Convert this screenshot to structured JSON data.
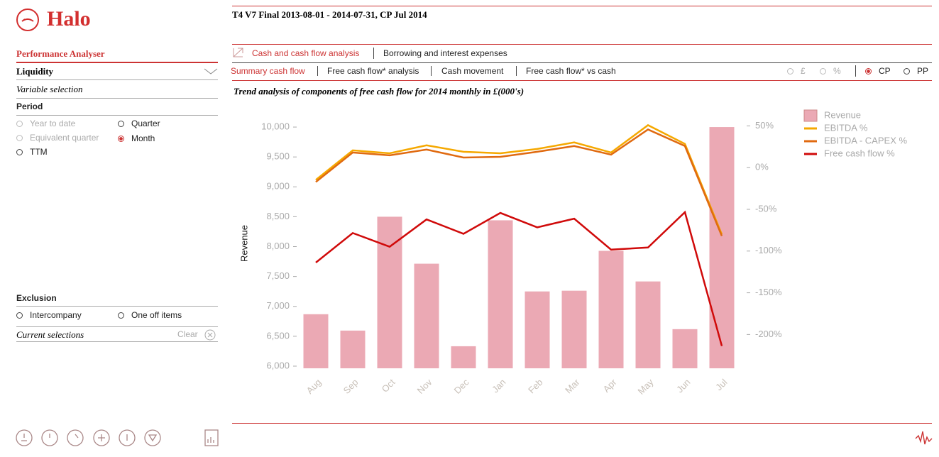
{
  "header": {
    "logo": "Halo",
    "title": "T4 V7 Final 2013-08-01 - 2014-07-31, CP Jul 2014"
  },
  "sidebar": {
    "section": "Performance Analyser",
    "dropdown": "Liquidity",
    "variable_selection": "Variable selection",
    "period": "Period",
    "period_options": [
      "Year to date",
      "Quarter",
      "Equivalent quarter",
      "Month",
      "TTM"
    ],
    "exclusion": "Exclusion",
    "exclusion_options": [
      "Intercompany",
      "One off items"
    ],
    "current_selections": "Current selections",
    "clear": "Clear"
  },
  "tabs": [
    "Cash and cash flow analysis",
    "Borrowing and interest expenses"
  ],
  "subtabs": [
    "Summary cash flow",
    "Free cash flow* analysis",
    "Cash movement",
    "Free cash flow* vs cash"
  ],
  "toggles": [
    "£",
    "%",
    "CP",
    "PP"
  ],
  "chart_data": {
    "type": "combo",
    "title": "Trend analysis of components of free cash flow for 2014 monthly in £(000's)",
    "y_label": "Revenue",
    "categories": [
      "Aug",
      "Sep",
      "Oct",
      "Nov",
      "Dec",
      "Jan",
      "Feb",
      "Mar",
      "Apr",
      "May",
      "Jun",
      "Jul"
    ],
    "series": [
      {
        "name": "Revenue",
        "type": "bar",
        "color": "#eba9b4",
        "values": [
          6869,
          6595,
          8500,
          7714,
          6333,
          8440,
          7250,
          7262,
          7929,
          7417,
          6619,
          10000
        ]
      },
      {
        "name": "EBITDA %",
        "type": "line",
        "axis": "y2",
        "color": "#f5a800",
        "values": [
          -14.7,
          20.7,
          17.2,
          26.7,
          19,
          17.2,
          22.4,
          30.2,
          18.1,
          50.9,
          28.4,
          -80
        ]
      },
      {
        "name": "EBITDA - CAPEX %",
        "type": "line",
        "axis": "y2",
        "color": "#e06a10",
        "values": [
          -17.2,
          18.1,
          14.7,
          21.6,
          12.1,
          12.9,
          19,
          25.9,
          15.5,
          45.7,
          25.9,
          -81.9
        ]
      },
      {
        "name": "Free cash flow %",
        "type": "line",
        "axis": "y2",
        "color": "#d00a0a",
        "values": [
          -113.8,
          -78.4,
          -94.8,
          -62.1,
          -79.3,
          -54.3,
          -71.6,
          -61.2,
          -98.3,
          -95.7,
          -53.4,
          -213.8
        ]
      }
    ],
    "ylim": [
      5964,
      10345
    ],
    "yticks": [
      {
        "value": 6000,
        "label": "6,000"
      },
      {
        "value": 6500,
        "label": "6,500"
      },
      {
        "value": 7000,
        "label": "7,000"
      },
      {
        "value": 7500,
        "label": "7,500"
      },
      {
        "value": 8000,
        "label": "8,000"
      },
      {
        "value": 8500,
        "label": "8,500"
      },
      {
        "value": 9000,
        "label": "9,000"
      },
      {
        "value": 9500,
        "label": "9,500"
      },
      {
        "value": 10000,
        "label": "10,000"
      }
    ],
    "y2lim": [
      -240.5,
      73.3
    ],
    "y2ticks": [
      {
        "value": 50,
        "label": "50%"
      },
      {
        "value": 0,
        "label": "0%"
      },
      {
        "value": -50,
        "label": "-50%"
      },
      {
        "value": -100,
        "label": "-100%"
      },
      {
        "value": -150,
        "label": "-150%"
      },
      {
        "value": -200,
        "label": "-200%"
      }
    ],
    "legend": "top-right"
  }
}
